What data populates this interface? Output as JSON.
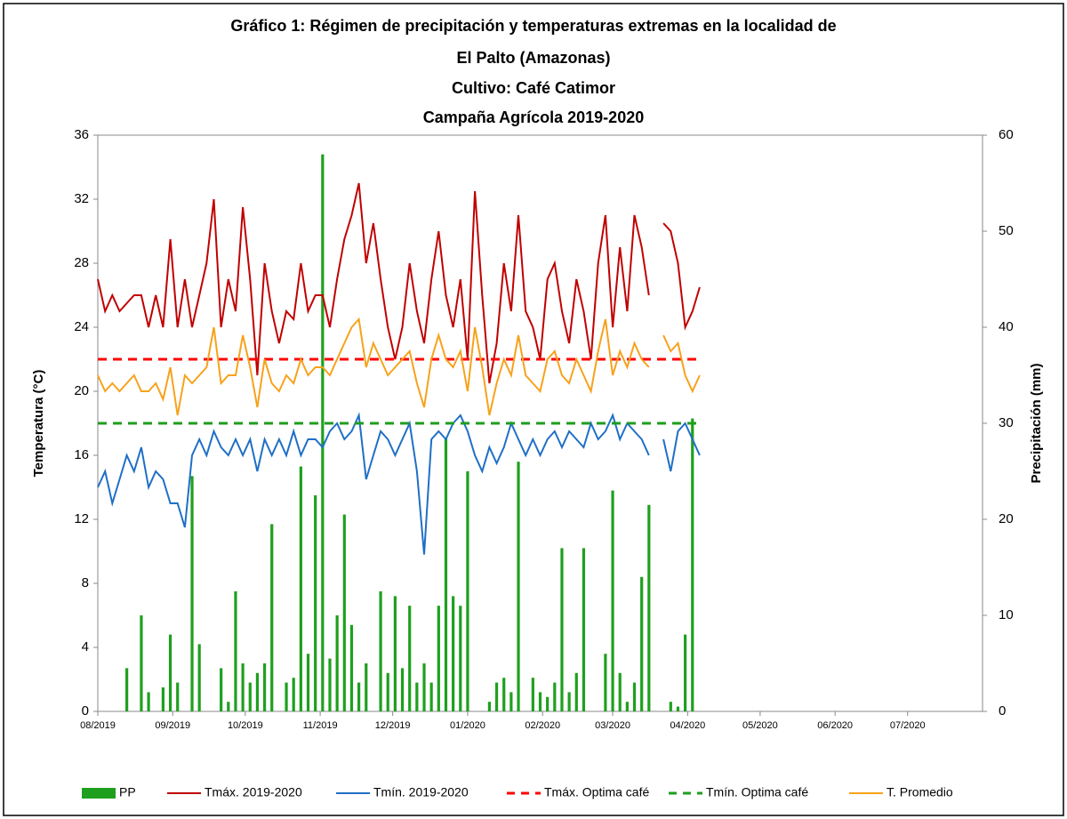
{
  "chart_data": {
    "type": "combo",
    "title": [
      "Gráfico 1: Régimen de precipitación y temperaturas extremas en la localidad de",
      "El Palto (Amazonas)",
      "Cultivo: Café Catimor",
      "Campaña Agrícola 2019-2020"
    ],
    "ylabel": "Temperatura (°C)",
    "y2label": "Precipitación  (mm)",
    "xlim": [
      0,
      366
    ],
    "xticks": [
      {
        "value": 0,
        "label": "08/2019"
      },
      {
        "value": 31,
        "label": "09/2019"
      },
      {
        "value": 61,
        "label": "10/2019"
      },
      {
        "value": 92,
        "label": "11/2019"
      },
      {
        "value": 122,
        "label": "12/2019"
      },
      {
        "value": 153,
        "label": "01/2020"
      },
      {
        "value": 184,
        "label": "02/2020"
      },
      {
        "value": 213,
        "label": "03/2020"
      },
      {
        "value": 244,
        "label": "04/2020"
      },
      {
        "value": 274,
        "label": "05/2020"
      },
      {
        "value": 305,
        "label": "06/2020"
      },
      {
        "value": 335,
        "label": "07/2020"
      }
    ],
    "ylim": [
      0,
      36
    ],
    "yticks": [
      0,
      4,
      8,
      12,
      16,
      20,
      24,
      28,
      32,
      36
    ],
    "y2lim": [
      0,
      60
    ],
    "y2ticks": [
      0,
      10,
      20,
      30,
      40,
      50,
      60
    ],
    "legend": "bottom",
    "x": [
      0,
      3,
      6,
      9,
      12,
      15,
      18,
      21,
      24,
      27,
      30,
      33,
      36,
      39,
      42,
      45,
      48,
      51,
      54,
      57,
      60,
      63,
      66,
      69,
      72,
      75,
      78,
      81,
      84,
      87,
      90,
      93,
      96,
      99,
      102,
      105,
      108,
      111,
      114,
      117,
      120,
      123,
      126,
      129,
      132,
      135,
      138,
      141,
      144,
      147,
      150,
      153,
      156,
      159,
      162,
      165,
      168,
      171,
      174,
      177,
      180,
      183,
      186,
      189,
      192,
      195,
      198,
      201,
      204,
      207,
      210,
      213,
      216,
      219,
      222,
      225,
      228,
      231,
      234,
      237,
      240,
      243,
      246,
      249
    ],
    "series": [
      {
        "name": "PP",
        "type": "bar",
        "axis": "y2",
        "color": "#1ea01e",
        "values": [
          0,
          0,
          0,
          0,
          4.5,
          0,
          10,
          2,
          0,
          2.5,
          8,
          3,
          0,
          24.5,
          7,
          0,
          0,
          4.5,
          1,
          12.5,
          5,
          3,
          4,
          5,
          19.5,
          0,
          3,
          3.5,
          25.5,
          6,
          22.5,
          58,
          5.5,
          10,
          20.5,
          9,
          3,
          5,
          0,
          12.5,
          4,
          12,
          4.5,
          11,
          3,
          5,
          3,
          11,
          28.5,
          12,
          11,
          25,
          0,
          0,
          1,
          3,
          3.5,
          2,
          26,
          0,
          3.5,
          2,
          1.5,
          3,
          17,
          2,
          4,
          17,
          0,
          0,
          6,
          23,
          4,
          1,
          3,
          14,
          21.5,
          0,
          0,
          1,
          0.5,
          8,
          30.5,
          0
        ]
      },
      {
        "name": "Tmáx. 2019-2020",
        "type": "line",
        "color": "#c00000",
        "values": [
          27,
          25,
          26,
          25,
          25.5,
          26,
          26,
          24,
          26,
          24,
          29.5,
          24,
          27,
          24,
          26,
          28,
          32,
          24,
          27,
          25,
          31.5,
          27,
          21,
          28,
          25,
          23,
          25,
          24.5,
          28,
          25,
          26,
          26,
          24,
          27,
          29.5,
          31,
          33,
          28,
          30.5,
          27,
          24,
          22,
          24,
          28,
          25,
          23,
          27,
          30,
          26,
          24,
          27,
          22,
          32.5,
          26,
          20.5,
          23,
          28,
          25,
          31,
          25,
          24,
          22,
          27,
          28,
          25,
          23,
          27,
          25,
          22,
          28,
          31,
          24,
          29,
          25,
          31,
          29,
          26,
          null,
          30.5,
          30,
          28,
          24,
          25,
          26.5
        ]
      },
      {
        "name": "Tmín. 2019-2020",
        "type": "line",
        "color": "#1f6fc6",
        "values": [
          14,
          15,
          13,
          14.5,
          16,
          15,
          16.5,
          14,
          15,
          14.5,
          13,
          13,
          11.5,
          16,
          17,
          16,
          17.5,
          16.5,
          16,
          17,
          16,
          17,
          15,
          17,
          16,
          17,
          16,
          17.5,
          16,
          17,
          17,
          16.5,
          17.5,
          18,
          17,
          17.5,
          18.5,
          14.5,
          16,
          17.5,
          17,
          16,
          17,
          18,
          15,
          9.8,
          17,
          17.5,
          17,
          18,
          18.5,
          17.5,
          16,
          15,
          16.5,
          15.5,
          16.5,
          18,
          17,
          16,
          17,
          16,
          17,
          17.5,
          16.5,
          17.5,
          17,
          16.5,
          18,
          17,
          17.5,
          18.5,
          17,
          18,
          17.5,
          17,
          16,
          null,
          17,
          15,
          17.5,
          18,
          17,
          16
        ]
      },
      {
        "name": "Tmáx. Optima café",
        "type": "line",
        "dash": true,
        "color": "#ff0000",
        "x": [
          0,
          248
        ],
        "values": [
          22,
          22
        ]
      },
      {
        "name": "Tmín. Optima café",
        "type": "line",
        "dash": true,
        "color": "#1e9e1e",
        "x": [
          0,
          248
        ],
        "values": [
          18,
          18
        ]
      },
      {
        "name": "T. Promedio",
        "type": "line",
        "color": "#f7a21b",
        "values": [
          21,
          20,
          20.5,
          20,
          20.5,
          21,
          20,
          20,
          20.5,
          19.5,
          21.5,
          18.5,
          21,
          20.5,
          21,
          21.5,
          24,
          20.5,
          21,
          21,
          23.5,
          21.5,
          19,
          22,
          20.5,
          20,
          21,
          20.5,
          22,
          21,
          21.5,
          21.5,
          21,
          22,
          23,
          24,
          24.5,
          21.5,
          23,
          22,
          21,
          21.5,
          22,
          22.5,
          20.5,
          19,
          22,
          23.5,
          22,
          21.5,
          22.5,
          20,
          24,
          21.5,
          18.5,
          20.5,
          22,
          21,
          23.5,
          21,
          20.5,
          20,
          22,
          22.5,
          21,
          20.5,
          22,
          21,
          20,
          22.5,
          24.5,
          21,
          22.5,
          21.5,
          23,
          22,
          21.5,
          null,
          23.5,
          22.5,
          23,
          21,
          20,
          21
        ]
      }
    ]
  }
}
